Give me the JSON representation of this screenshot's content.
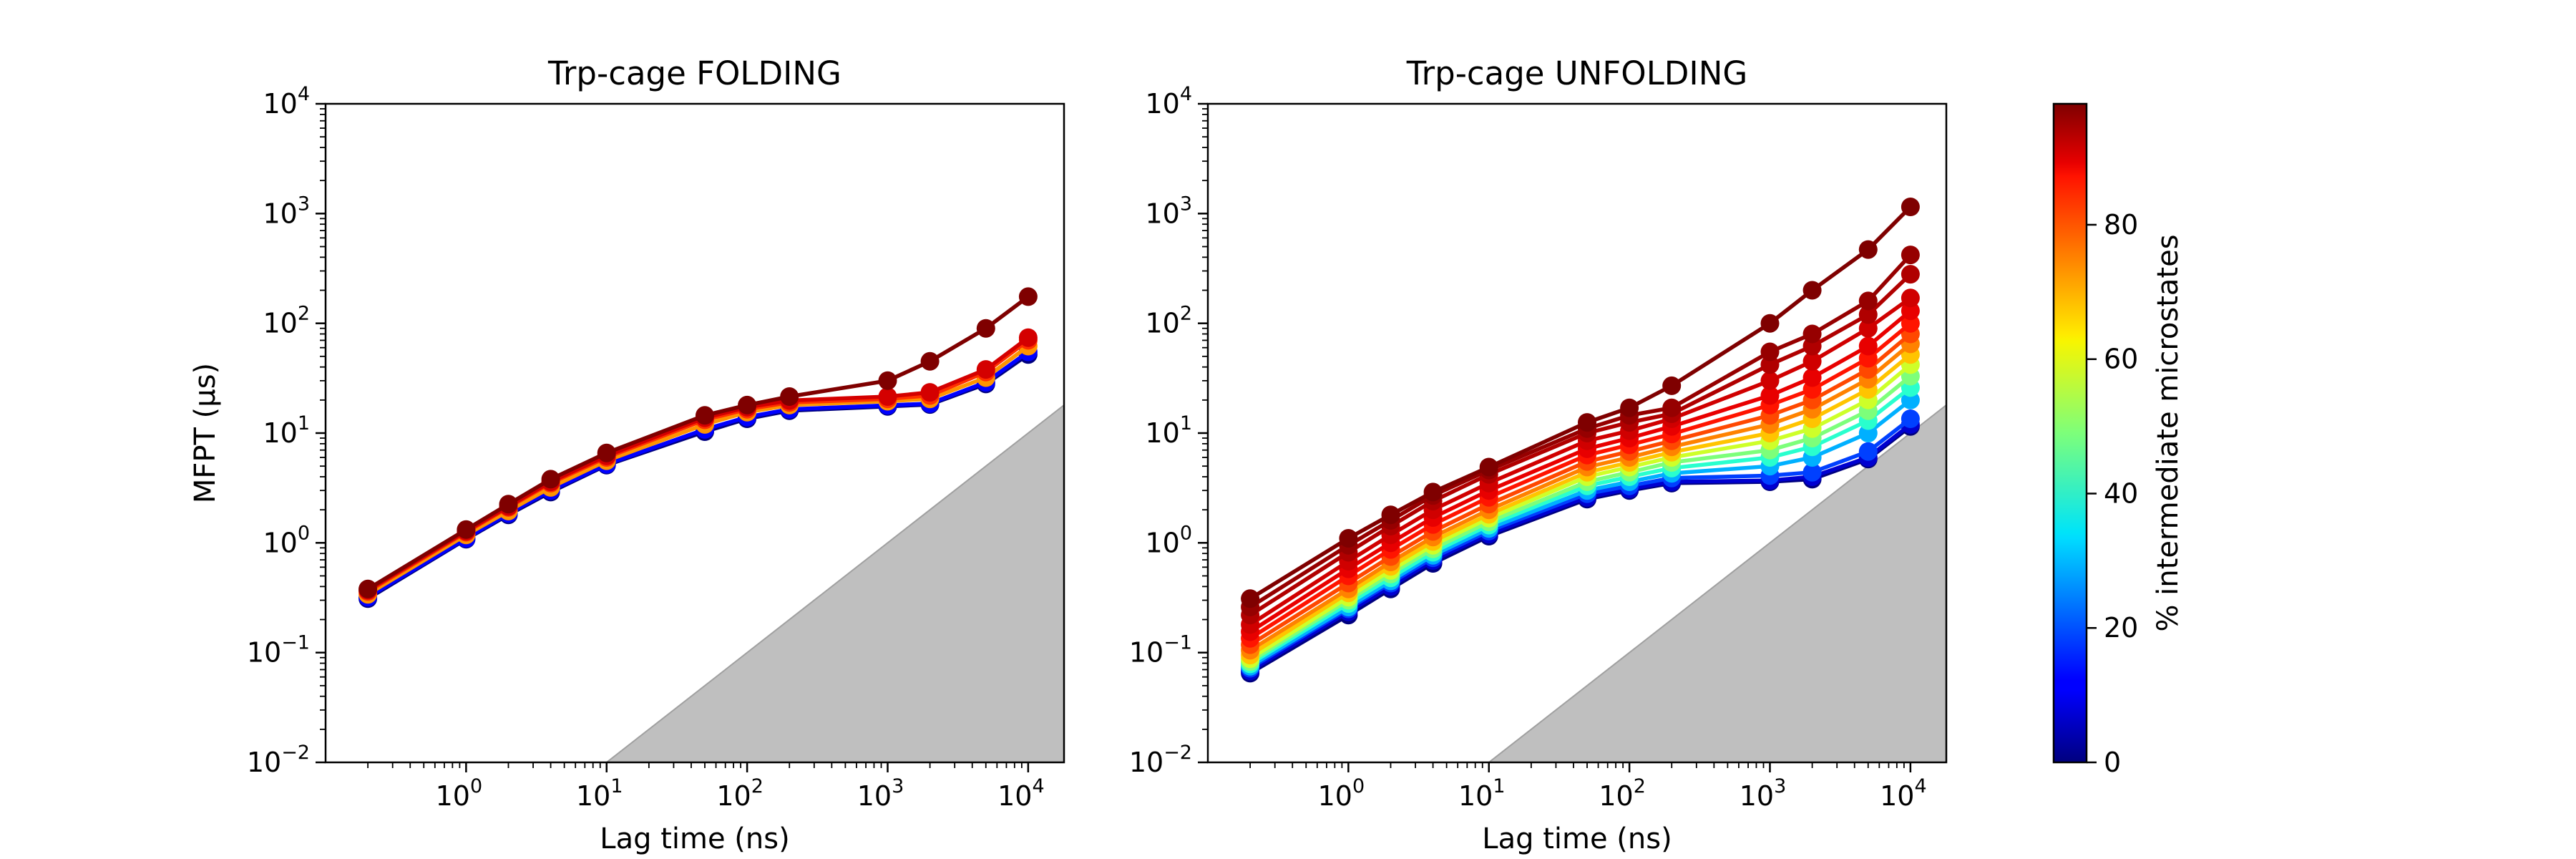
{
  "chart_data": [
    {
      "type": "line",
      "title": "Trp-cage FOLDING",
      "xlabel": "Lag time (ns)",
      "ylabel": "MFPT (μs)",
      "xscale": "log",
      "yscale": "log",
      "xlim": [
        0.1,
        18000
      ],
      "ylim": [
        0.01,
        10000
      ],
      "xticks": [
        {
          "base": "10",
          "exp": "0"
        },
        {
          "base": "10",
          "exp": "1"
        },
        {
          "base": "10",
          "exp": "2"
        },
        {
          "base": "10",
          "exp": "3"
        },
        {
          "base": "10",
          "exp": "4"
        }
      ],
      "yticks": [
        {
          "base": "10",
          "exp": "−2"
        },
        {
          "base": "10",
          "exp": "−1"
        },
        {
          "base": "10",
          "exp": "0"
        },
        {
          "base": "10",
          "exp": "1"
        },
        {
          "base": "10",
          "exp": "2"
        },
        {
          "base": "10",
          "exp": "3"
        },
        {
          "base": "10",
          "exp": "4"
        }
      ],
      "shaded_region": {
        "description": "grey region below MFPT = lag time",
        "x_start": 10,
        "color": "#bfbfbf"
      },
      "x": [
        0.2,
        1,
        2,
        4,
        10,
        50,
        100,
        200,
        1000,
        2000,
        5000,
        10000
      ],
      "series": [
        {
          "percent_intermediate": 0,
          "color": "#00007f",
          "values": [
            0.31,
            1.08,
            1.8,
            2.9,
            5.1,
            10.3,
            13.5,
            16.0,
            17.5,
            18.2,
            28.0,
            52.0
          ]
        },
        {
          "percent_intermediate": 10,
          "color": "#0000ff",
          "values": [
            0.32,
            1.1,
            1.85,
            3.0,
            5.2,
            10.8,
            14.0,
            16.5,
            17.9,
            18.6,
            29.0,
            55.0
          ]
        },
        {
          "percent_intermediate": 70,
          "color": "#ff9400",
          "values": [
            0.34,
            1.18,
            1.95,
            3.2,
            5.6,
            12.0,
            15.5,
            18.0,
            19.5,
            20.5,
            32.0,
            62.0
          ]
        },
        {
          "percent_intermediate": 85,
          "color": "#ff3000",
          "values": [
            0.36,
            1.25,
            2.1,
            3.5,
            6.0,
            13.2,
            16.5,
            19.0,
            20.5,
            22.0,
            36.0,
            70.0
          ]
        },
        {
          "percent_intermediate": 92,
          "color": "#d40000",
          "values": [
            0.37,
            1.28,
            2.15,
            3.6,
            6.2,
            13.8,
            17.2,
            19.8,
            21.5,
            23.5,
            38.0,
            74.0
          ]
        },
        {
          "percent_intermediate": 98,
          "color": "#7f0000",
          "values": [
            0.38,
            1.32,
            2.25,
            3.8,
            6.6,
            14.5,
            18.0,
            21.5,
            30.0,
            45.0,
            90.0,
            175.0
          ]
        }
      ]
    },
    {
      "type": "line",
      "title": "Trp-cage UNFOLDING",
      "xlabel": "Lag time (ns)",
      "xscale": "log",
      "yscale": "log",
      "xlim": [
        0.1,
        18000
      ],
      "ylim": [
        0.01,
        10000
      ],
      "xticks": [
        {
          "base": "10",
          "exp": "0"
        },
        {
          "base": "10",
          "exp": "1"
        },
        {
          "base": "10",
          "exp": "2"
        },
        {
          "base": "10",
          "exp": "3"
        },
        {
          "base": "10",
          "exp": "4"
        }
      ],
      "yticks": [
        {
          "base": "10",
          "exp": "−2"
        },
        {
          "base": "10",
          "exp": "−1"
        },
        {
          "base": "10",
          "exp": "0"
        },
        {
          "base": "10",
          "exp": "1"
        },
        {
          "base": "10",
          "exp": "2"
        },
        {
          "base": "10",
          "exp": "3"
        },
        {
          "base": "10",
          "exp": "4"
        }
      ],
      "shaded_region": {
        "description": "grey region below MFPT = lag time",
        "x_start": 10,
        "color": "#bfbfbf"
      },
      "x": [
        0.2,
        1,
        2,
        4,
        10,
        50,
        100,
        200,
        1000,
        2000,
        5000,
        10000
      ],
      "series": [
        {
          "percent_intermediate": 0,
          "color": "#00007f",
          "values": [
            0.065,
            0.22,
            0.38,
            0.65,
            1.15,
            2.5,
            3.0,
            3.5,
            3.6,
            3.8,
            5.8,
            11.5
          ]
        },
        {
          "percent_intermediate": 5,
          "color": "#0000d0",
          "values": [
            0.068,
            0.235,
            0.4,
            0.69,
            1.2,
            2.6,
            3.1,
            3.6,
            3.7,
            4.0,
            6.0,
            12.0
          ]
        },
        {
          "percent_intermediate": 15,
          "color": "#0040ff",
          "values": [
            0.072,
            0.25,
            0.43,
            0.73,
            1.28,
            2.8,
            3.3,
            3.9,
            4.1,
            4.4,
            6.8,
            13.5
          ]
        },
        {
          "percent_intermediate": 30,
          "color": "#00b0ff",
          "values": [
            0.075,
            0.26,
            0.45,
            0.77,
            1.35,
            3.0,
            3.6,
            4.3,
            5.0,
            6.0,
            10.0,
            20.0
          ]
        },
        {
          "percent_intermediate": 45,
          "color": "#29ffce",
          "values": [
            0.079,
            0.28,
            0.48,
            0.82,
            1.45,
            3.3,
            4.0,
            4.8,
            6.0,
            7.5,
            13.0,
            26.0
          ]
        },
        {
          "percent_intermediate": 55,
          "color": "#7dff7a",
          "values": [
            0.083,
            0.3,
            0.52,
            0.88,
            1.55,
            3.6,
            4.4,
            5.4,
            7.0,
            9.0,
            16.0,
            33.0
          ]
        },
        {
          "percent_intermediate": 62,
          "color": "#ceff29",
          "values": [
            0.088,
            0.32,
            0.56,
            0.95,
            1.68,
            4.0,
            4.9,
            6.0,
            8.5,
            11.0,
            20.0,
            42.0
          ]
        },
        {
          "percent_intermediate": 68,
          "color": "#ffc400",
          "values": [
            0.095,
            0.35,
            0.61,
            1.03,
            1.82,
            4.4,
            5.4,
            6.7,
            10.0,
            13.5,
            25.0,
            52.0
          ]
        },
        {
          "percent_intermediate": 74,
          "color": "#ff8200",
          "values": [
            0.105,
            0.38,
            0.67,
            1.13,
            2.0,
            4.9,
            6.0,
            7.5,
            12.0,
            16.5,
            31.0,
            65.0
          ]
        },
        {
          "percent_intermediate": 80,
          "color": "#ff4800",
          "values": [
            0.118,
            0.43,
            0.75,
            1.27,
            2.25,
            5.5,
            6.8,
            8.5,
            14.5,
            20.0,
            38.0,
            80.0
          ]
        },
        {
          "percent_intermediate": 86,
          "color": "#ff1400",
          "values": [
            0.135,
            0.5,
            0.87,
            1.47,
            2.6,
            6.3,
            7.8,
            9.8,
            18.0,
            25.0,
            48.0,
            100.0
          ]
        },
        {
          "percent_intermediate": 90,
          "color": "#e80000",
          "values": [
            0.155,
            0.58,
            1.0,
            1.7,
            3.0,
            7.2,
            9.0,
            11.5,
            22.0,
            32.0,
            62.0,
            130.0
          ]
        },
        {
          "percent_intermediate": 93,
          "color": "#d00000",
          "values": [
            0.18,
            0.68,
            1.18,
            2.0,
            3.5,
            8.5,
            10.5,
            13.5,
            30.0,
            45.0,
            90.0,
            170.0
          ]
        },
        {
          "percent_intermediate": 95,
          "color": "#b00000",
          "values": [
            0.22,
            0.82,
            1.42,
            2.4,
            4.2,
            10.0,
            12.5,
            15.0,
            42.0,
            62.0,
            120.0,
            280.0
          ]
        },
        {
          "percent_intermediate": 97,
          "color": "#960000",
          "values": [
            0.26,
            0.95,
            1.6,
            2.7,
            4.6,
            11.0,
            14.5,
            17.0,
            55.0,
            80.0,
            160.0,
            420.0
          ]
        },
        {
          "percent_intermediate": 99,
          "color": "#7f0000",
          "values": [
            0.31,
            1.1,
            1.8,
            2.9,
            4.9,
            12.5,
            17.0,
            27.0,
            100.0,
            200.0,
            470.0,
            1150.0
          ]
        }
      ]
    }
  ],
  "colorbar": {
    "label": "% intermediate microstates",
    "colormap": "jet",
    "range": [
      0,
      98
    ],
    "ticks": [
      "0",
      "20",
      "40",
      "60",
      "80"
    ]
  }
}
